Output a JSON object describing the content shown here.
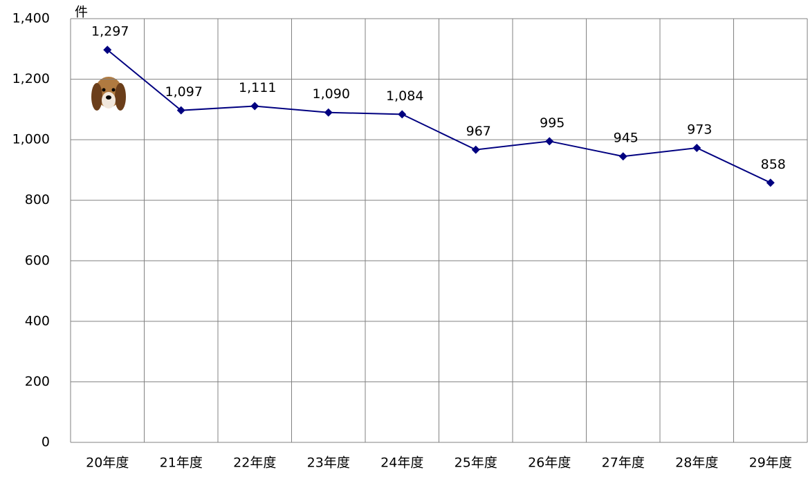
{
  "chart_data": {
    "type": "line",
    "y_unit": "件",
    "categories": [
      "20年度",
      "21年度",
      "22年度",
      "23年度",
      "24年度",
      "25年度",
      "26年度",
      "27年度",
      "28年度",
      "29年度"
    ],
    "values": [
      1297,
      1097,
      1111,
      1090,
      1084,
      967,
      995,
      945,
      973,
      858
    ],
    "value_labels": [
      "1,297",
      "1,097",
      "1,111",
      "1,090",
      "1,084",
      "967",
      "995",
      "945",
      "973",
      "858"
    ],
    "color": "#000080",
    "ylim": [
      0,
      1400
    ],
    "yticks": [
      0,
      200,
      400,
      600,
      800,
      {
        "value": 1000,
        "label": "1,000"
      },
      {
        "value": 1200,
        "label": "1,200"
      },
      {
        "value": 1400,
        "label": "1,400"
      }
    ],
    "grid": true
  }
}
